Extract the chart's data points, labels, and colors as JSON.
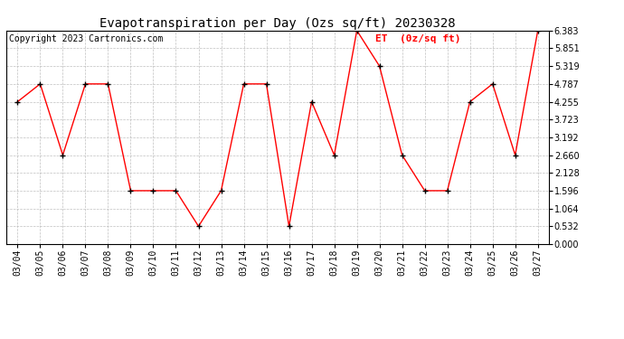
{
  "title": "Evapotranspiration per Day (Ozs sq/ft) 20230328",
  "copyright": "Copyright 2023 Cartronics.com",
  "legend_label": "ET  (0z/sq ft)",
  "dates": [
    "03/04",
    "03/05",
    "03/06",
    "03/07",
    "03/08",
    "03/09",
    "03/10",
    "03/11",
    "03/12",
    "03/13",
    "03/14",
    "03/15",
    "03/16",
    "03/17",
    "03/18",
    "03/19",
    "03/20",
    "03/21",
    "03/22",
    "03/23",
    "03/24",
    "03/25",
    "03/26",
    "03/27"
  ],
  "values": [
    4.255,
    4.787,
    2.66,
    4.787,
    4.787,
    1.596,
    1.596,
    1.596,
    0.532,
    1.596,
    4.787,
    4.787,
    0.532,
    4.255,
    2.66,
    6.383,
    5.319,
    2.66,
    1.596,
    1.596,
    4.255,
    4.787,
    2.66,
    6.383
  ],
  "line_color": "red",
  "marker": "+",
  "marker_color": "black",
  "bg_color": "#ffffff",
  "grid_color": "#b0b0b0",
  "ylim": [
    0.0,
    6.383
  ],
  "yticks": [
    0.0,
    0.532,
    1.064,
    1.596,
    2.128,
    2.66,
    3.192,
    3.723,
    4.255,
    4.787,
    5.319,
    5.851,
    6.383
  ],
  "title_fontsize": 10,
  "copyright_fontsize": 7,
  "legend_fontsize": 8,
  "tick_fontsize": 7
}
